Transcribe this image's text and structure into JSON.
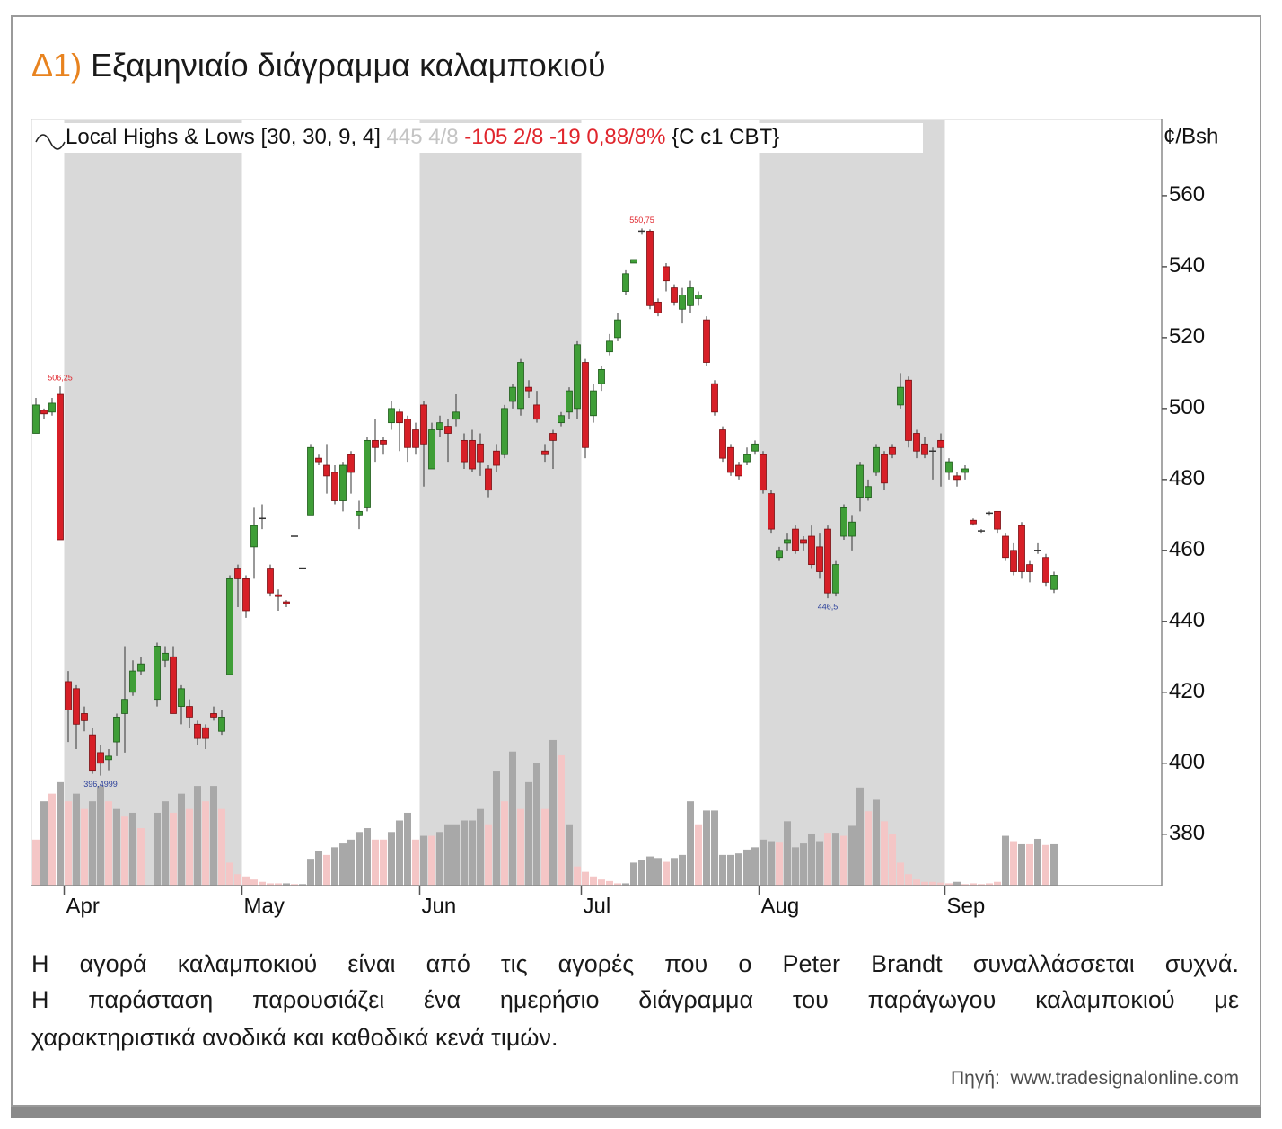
{
  "chart_data": {
    "type": "candlestick",
    "title_prefix": "Δ1)",
    "title": "Εξαμηνιαίο διάγραμμα καλαμποκιού",
    "indicator_label": "Local Highs & Lows [30, 30, 9, 4]",
    "indicator_last": "445 4/8",
    "indicator_change": "-105 2/8 -19 0,88/8%",
    "indicator_symbol": "{C c1 CBT}",
    "unit_label": "¢/Bsh",
    "ylim": [
      365.5,
      581.5
    ],
    "yticks": [
      380,
      400,
      420,
      440,
      460,
      480,
      500,
      520,
      540,
      560
    ],
    "y2lim": [
      0,
      100
    ],
    "up_color": "#3f9e37",
    "down_color": "#d71f27",
    "flat_color": "#333333",
    "shade_color": "#d9d9d9",
    "high_label_color": "#e0262d",
    "low_label_color": "#2a3f9a",
    "categories": [
      null,
      null,
      null,
      null,
      "Apr",
      null,
      null,
      null,
      null,
      null,
      null,
      null,
      null,
      null,
      null,
      null,
      null,
      null,
      null,
      null,
      null,
      null,
      null,
      null,
      null,
      null,
      "May",
      null,
      null,
      null,
      null,
      null,
      null,
      null,
      null,
      null,
      null,
      null,
      null,
      null,
      null,
      null,
      null,
      null,
      null,
      null,
      null,
      null,
      "Jun",
      null,
      null,
      null,
      null,
      null,
      null,
      null,
      null,
      null,
      null,
      null,
      null,
      null,
      null,
      null,
      null,
      null,
      null,
      null,
      "Jul",
      null,
      null,
      null,
      null,
      null,
      null,
      null,
      null,
      null,
      null,
      null,
      null,
      null,
      null,
      null,
      null,
      null,
      null,
      null,
      null,
      null,
      "Aug",
      null,
      null,
      null,
      null,
      null,
      null,
      null,
      null,
      null,
      null,
      null,
      null,
      null,
      null,
      null,
      null,
      null,
      null,
      null,
      null,
      null,
      null,
      "Sep",
      null,
      null,
      null,
      null,
      null,
      null,
      null,
      null,
      null,
      null,
      null,
      null,
      null
    ],
    "open": [
      493,
      499.5,
      499,
      504,
      423,
      421,
      414,
      408,
      403,
      401,
      406,
      414,
      420,
      426,
      null,
      418,
      429,
      430,
      416,
      416,
      411,
      410,
      414,
      409,
      425,
      455,
      452,
      461,
      469,
      455,
      447.5,
      445.5,
      464,
      455,
      470,
      486,
      484,
      482,
      474,
      487,
      470,
      472,
      491,
      491,
      496,
      499,
      497,
      494,
      501,
      483,
      494,
      495,
      497,
      491,
      491,
      490,
      483,
      488,
      487,
      502,
      500,
      506,
      501,
      488,
      493,
      496,
      499,
      500,
      513,
      498,
      507,
      516,
      520,
      533,
      541,
      550,
      550,
      530,
      540,
      534,
      528,
      529,
      531,
      525,
      507,
      494,
      489,
      484,
      485,
      488,
      487,
      476,
      458,
      462,
      466,
      463,
      464,
      461,
      466,
      448,
      464,
      464,
      475,
      475,
      482,
      487,
      489,
      501,
      508,
      493,
      490,
      488,
      491,
      482,
      481,
      482,
      468.5,
      465.5,
      470.5,
      471,
      464,
      460,
      467,
      456,
      460,
      458,
      449
    ],
    "high": [
      503,
      500,
      503,
      506.25,
      426,
      422,
      416,
      410,
      405,
      404,
      414,
      433,
      429,
      430,
      null,
      434,
      433,
      433,
      422,
      418,
      412,
      411,
      416,
      415,
      453,
      456,
      453,
      472,
      473,
      456,
      449,
      446,
      464,
      455,
      490,
      487,
      490,
      484,
      485,
      488,
      474,
      492,
      497,
      492,
      502,
      500,
      498,
      496,
      502,
      496,
      498,
      497,
      504,
      493,
      494,
      493,
      484,
      490,
      501,
      507,
      514,
      508,
      505,
      490,
      494,
      499,
      506,
      519,
      514,
      507,
      512,
      521,
      527,
      539,
      542,
      550.75,
      550.5,
      531,
      541,
      535,
      534,
      536,
      533,
      526,
      508,
      495,
      490,
      485,
      489,
      491,
      488,
      477,
      461,
      465,
      467,
      464,
      467,
      465,
      467,
      457,
      473,
      470,
      485,
      480,
      490,
      488,
      490,
      510,
      509,
      494,
      492,
      489,
      493,
      486,
      482,
      484,
      469,
      466,
      471,
      471,
      465,
      462,
      468,
      457,
      462,
      459,
      454
    ],
    "low": [
      493,
      497,
      498,
      463,
      406,
      404,
      409,
      397,
      396.4999,
      398,
      402,
      403,
      419,
      425,
      null,
      416,
      427,
      414,
      411,
      410,
      405,
      404,
      412,
      408,
      425,
      444,
      441,
      452,
      466,
      447,
      443,
      444,
      464,
      455,
      470,
      484,
      476,
      473,
      471,
      476,
      466,
      471,
      485,
      487,
      494,
      488,
      485,
      487,
      478,
      483,
      492,
      485,
      495,
      483,
      482,
      481,
      475,
      482,
      486,
      500,
      498,
      503,
      496,
      485,
      483,
      495,
      497,
      497,
      486,
      496,
      505,
      515,
      519,
      532,
      541,
      549,
      528,
      526,
      533,
      529,
      524,
      527,
      529,
      512,
      498,
      485,
      481,
      480,
      484,
      487,
      476,
      465,
      457,
      460,
      459,
      460,
      455,
      452,
      446.5,
      447,
      463,
      460,
      471,
      474,
      481,
      477,
      486,
      500,
      489,
      486,
      486,
      480,
      478,
      480,
      478,
      480,
      467,
      465,
      470,
      465,
      457,
      453,
      452,
      451,
      459,
      450,
      448
    ],
    "close": [
      501,
      498.5,
      501.5,
      463,
      415,
      411,
      412,
      398,
      400,
      402,
      413,
      418,
      426,
      428,
      null,
      433,
      431,
      414,
      421,
      413,
      407,
      407,
      413,
      413,
      452,
      452,
      443,
      467,
      469,
      448,
      447,
      445,
      464,
      455,
      489,
      485,
      481,
      474,
      484,
      482,
      471,
      491,
      489,
      490,
      500,
      496,
      489,
      489,
      490,
      494,
      496,
      493,
      499,
      485,
      483,
      485,
      477,
      484,
      500,
      506,
      513,
      505,
      497,
      487,
      491,
      498,
      505,
      518,
      489,
      505,
      511,
      519,
      525,
      538,
      542,
      550,
      529,
      527,
      536,
      530,
      532,
      534,
      532,
      513,
      499,
      486,
      482,
      481,
      487,
      490,
      477,
      466,
      460,
      463,
      460,
      462,
      456,
      454,
      448,
      456,
      472,
      468,
      484,
      478,
      489,
      479,
      487,
      506,
      491,
      488,
      487,
      488,
      489,
      485,
      480,
      483,
      467.5,
      465.5,
      470.5,
      466,
      458,
      454,
      454,
      454,
      460,
      451,
      453
    ],
    "high_labels": [
      null,
      null,
      null,
      "506,25",
      null,
      null,
      null,
      null,
      null,
      null,
      null,
      null,
      null,
      null,
      null,
      null,
      null,
      null,
      null,
      null,
      null,
      null,
      null,
      null,
      null,
      null,
      null,
      null,
      null,
      null,
      null,
      null,
      null,
      null,
      null,
      null,
      null,
      null,
      null,
      null,
      null,
      null,
      null,
      null,
      null,
      null,
      null,
      null,
      null,
      null,
      null,
      null,
      null,
      null,
      null,
      null,
      null,
      null,
      null,
      null,
      null,
      null,
      null,
      null,
      null,
      null,
      null,
      null,
      null,
      null,
      null,
      null,
      null,
      null,
      null,
      "550,75",
      null,
      null,
      null,
      null,
      null,
      null,
      null,
      null,
      null,
      null,
      null,
      null,
      null,
      null,
      null,
      null,
      null,
      null,
      null,
      null,
      null,
      null,
      null,
      null,
      null,
      null,
      null,
      null,
      null,
      null,
      null,
      null,
      null,
      null,
      null,
      null,
      null,
      null,
      null,
      null,
      null,
      null,
      null,
      null,
      null,
      null,
      null,
      null,
      null,
      null,
      null
    ],
    "low_labels": [
      null,
      null,
      null,
      null,
      null,
      null,
      null,
      null,
      "396,4999",
      null,
      null,
      null,
      null,
      null,
      null,
      null,
      null,
      null,
      null,
      null,
      null,
      null,
      null,
      null,
      null,
      null,
      null,
      null,
      null,
      null,
      null,
      null,
      null,
      null,
      null,
      null,
      null,
      null,
      null,
      null,
      null,
      null,
      null,
      null,
      null,
      null,
      null,
      null,
      null,
      null,
      null,
      null,
      null,
      null,
      null,
      null,
      null,
      null,
      null,
      null,
      null,
      null,
      null,
      null,
      null,
      null,
      null,
      null,
      null,
      null,
      null,
      null,
      null,
      null,
      null,
      null,
      null,
      null,
      null,
      null,
      null,
      null,
      null,
      null,
      null,
      null,
      null,
      null,
      null,
      null,
      null,
      null,
      null,
      null,
      null,
      null,
      null,
      null,
      "446,5",
      null,
      null,
      null,
      null,
      null,
      null,
      null,
      null,
      null,
      null,
      null,
      null,
      null,
      null,
      null,
      null,
      null,
      null,
      null,
      null,
      null,
      null,
      null,
      null,
      null,
      null,
      null,
      null
    ],
    "volume": [
      6,
      11,
      12,
      13.5,
      11,
      12,
      10,
      11,
      13,
      11,
      10,
      9,
      9.5,
      7.5,
      null,
      9.5,
      11,
      9.5,
      12,
      10,
      13,
      11,
      13,
      10,
      3,
      1.5,
      1.2,
      0.8,
      0.5,
      0.3,
      0.3,
      0.3,
      0.2,
      0.2,
      3.5,
      4.5,
      4,
      5,
      5.5,
      6,
      7,
      7.5,
      6,
      6,
      7,
      8.5,
      9.5,
      6,
      6.5,
      6.5,
      7,
      8,
      8,
      8.5,
      8.5,
      10,
      8,
      15,
      11,
      17.5,
      10,
      13.5,
      16,
      10,
      19,
      17,
      8,
      2.5,
      1.8,
      1.2,
      0.8,
      0.6,
      0.3,
      0.3,
      3,
      3.4,
      3.8,
      3.6,
      3.1,
      3.6,
      4,
      11,
      8,
      9.8,
      9.8,
      4,
      4,
      4.2,
      4.7,
      5,
      6,
      5.8,
      5.6,
      8.4,
      5,
      5.5,
      6.8,
      5.8,
      6.9,
      6.9,
      6.5,
      7.8,
      12.8,
      9.7,
      11.2,
      8.4,
      6.8,
      3,
      1.5,
      0.8,
      0.5,
      0.5,
      0.4,
      0.3,
      0.5,
      0.2,
      0.3,
      0.2,
      0.3,
      0.5,
      6.5,
      5.8,
      5.4,
      5.4,
      6.1,
      5.3,
      5.4
    ],
    "volume_colors": [
      "#f4c6c6",
      "#a8a8a8",
      "#f4c6c6",
      "#a8a8a8",
      "#f4c6c6",
      "#a8a8a8",
      "#f4c6c6",
      "#a8a8a8",
      "#a8a8a8",
      "#f4c6c6",
      "#a8a8a8",
      "#f4c6c6",
      "#a8a8a8",
      "#f4c6c6",
      "#f4c6c6",
      "#a8a8a8",
      "#a8a8a8",
      "#f4c6c6",
      "#a8a8a8",
      "#f4c6c6",
      "#a8a8a8",
      "#f4c6c6",
      "#a8a8a8",
      "#f4c6c6",
      "#f4c6c6",
      "#f4c6c6",
      "#f4c6c6",
      "#f4c6c6",
      "#f4c6c6",
      "#f4c6c6",
      "#f4c6c6",
      "#a8a8a8",
      "#f4c6c6",
      "#a8a8a8",
      "#a8a8a8",
      "#a8a8a8",
      "#f4c6c6",
      "#a8a8a8",
      "#a8a8a8",
      "#a8a8a8",
      "#a8a8a8",
      "#a8a8a8",
      "#f4c6c6",
      "#f4c6c6",
      "#a8a8a8",
      "#a8a8a8",
      "#a8a8a8",
      "#f4c6c6",
      "#a8a8a8",
      "#f4c6c6",
      "#a8a8a8",
      "#a8a8a8",
      "#a8a8a8",
      "#a8a8a8",
      "#a8a8a8",
      "#a8a8a8",
      "#f4c6c6",
      "#a8a8a8",
      "#f4c6c6",
      "#a8a8a8",
      "#f4c6c6",
      "#a8a8a8",
      "#a8a8a8",
      "#f4c6c6",
      "#a8a8a8",
      "#f4c6c6",
      "#a8a8a8",
      "#f4c6c6",
      "#f4c6c6",
      "#f4c6c6",
      "#f4c6c6",
      "#f4c6c6",
      "#f4c6c6",
      "#a8a8a8",
      "#a8a8a8",
      "#a8a8a8",
      "#a8a8a8",
      "#a8a8a8",
      "#f4c6c6",
      "#a8a8a8",
      "#a8a8a8",
      "#a8a8a8",
      "#f4c6c6",
      "#a8a8a8",
      "#a8a8a8",
      "#a8a8a8",
      "#a8a8a8",
      "#a8a8a8",
      "#a8a8a8",
      "#a8a8a8",
      "#a8a8a8",
      "#a8a8a8",
      "#f4c6c6",
      "#a8a8a8",
      "#a8a8a8",
      "#a8a8a8",
      "#a8a8a8",
      "#a8a8a8",
      "#f4c6c6",
      "#a8a8a8",
      "#f4c6c6",
      "#a8a8a8",
      "#a8a8a8",
      "#f4c6c6",
      "#a8a8a8",
      "#f4c6c6",
      "#f4c6c6",
      "#f4c6c6",
      "#f4c6c6",
      "#f4c6c6",
      "#f4c6c6",
      "#f4c6c6",
      "#f4c6c6",
      "#f4c6c6",
      "#a8a8a8",
      "#f4c6c6",
      "#f4c6c6",
      "#f4c6c6",
      "#f4c6c6",
      "#f4c6c6",
      "#a8a8a8",
      "#f4c6c6",
      "#a8a8a8",
      "#f4c6c6",
      "#a8a8a8",
      "#f4c6c6",
      "#a8a8a8"
    ],
    "body_lines": [
      "Η αγορά καλαμποκιού είναι από τις αγορές που ο Peter Brandt συναλλάσσεται συχνά.",
      "Η παράσταση παρουσιάζει ένα ημερήσιο διάγραμμα του παράγωγου καλαμποκιού με",
      "χαρακτηριστικά ανοδικά και καθοδικά κενά τιμών."
    ],
    "source": "Πηγή:  www.tradesignalonline.com"
  }
}
